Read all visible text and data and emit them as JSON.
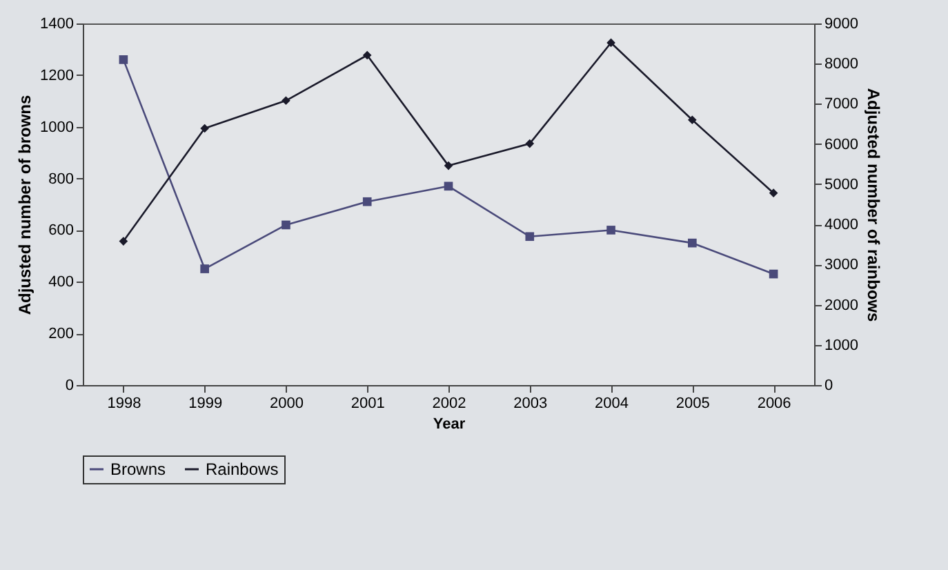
{
  "chart_data": {
    "type": "line",
    "xlabel": "Year",
    "ylabel": "Adjusted number of browns",
    "y2label": "Adjusted number of rainbows",
    "categories": [
      "1998",
      "1999",
      "2000",
      "2001",
      "2002",
      "2003",
      "2004",
      "2005",
      "2006"
    ],
    "series": [
      {
        "name": "Browns",
        "color": "#4a4a7a",
        "marker": "square",
        "values": [
          1260,
          450,
          620,
          710,
          770,
          575,
          600,
          550,
          430
        ]
      },
      {
        "name": "Rainbows",
        "color": "#1a1a2a",
        "marker": "diamond",
        "axis": "y2",
        "values": [
          3580,
          6390,
          7080,
          8210,
          5460,
          6010,
          8520,
          6600,
          4780
        ]
      }
    ],
    "ylim": [
      0,
      1400
    ],
    "yticks": [
      0,
      200,
      400,
      600,
      800,
      1000,
      1200,
      1400
    ],
    "y2lim": [
      0,
      9000
    ],
    "y2ticks": [
      0,
      1000,
      2000,
      3000,
      4000,
      5000,
      6000,
      7000,
      8000,
      9000
    ],
    "grid": false,
    "legend": "bottom",
    "line_style": "solid"
  }
}
